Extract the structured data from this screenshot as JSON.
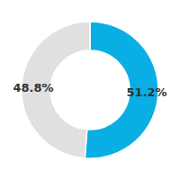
{
  "chart_data": {
    "type": "donut",
    "values": [
      51.2,
      48.8
    ],
    "value_labels": [
      "51.2%",
      "48.8%"
    ],
    "colors": [
      "#09aee5",
      "#e0e0e0"
    ],
    "data_labels": true
  }
}
